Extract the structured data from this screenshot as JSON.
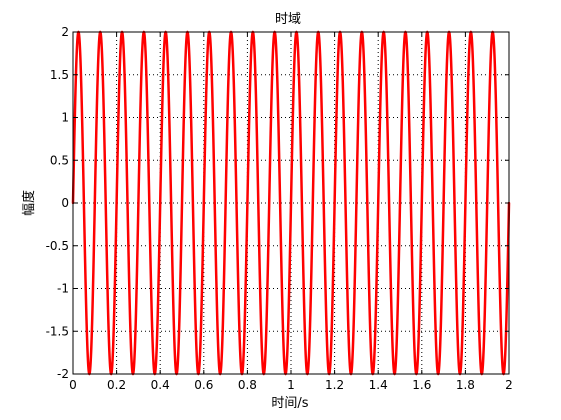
{
  "chart_data": {
    "type": "line",
    "title": "时域",
    "xlabel": "时间/s",
    "ylabel": "幅度",
    "xlim": [
      0,
      2
    ],
    "ylim": [
      -2,
      2
    ],
    "x_ticks": [
      0,
      0.2,
      0.4,
      0.6,
      0.8,
      1,
      1.2,
      1.4,
      1.6,
      1.8,
      2
    ],
    "x_tick_labels": [
      "0",
      "0.2",
      "0.4",
      "0.6",
      "0.8",
      "1",
      "1.2",
      "1.4",
      "1.6",
      "1.8",
      "2"
    ],
    "y_ticks": [
      2,
      1.5,
      1,
      0.5,
      0,
      -0.5,
      -1,
      -1.5,
      -2
    ],
    "y_tick_labels": [
      "2",
      "1.5",
      "1",
      "0.5",
      "0",
      "-0.5",
      "-1",
      "-1.5",
      "-2"
    ],
    "grid": true,
    "series": [
      {
        "color": "#ff0000",
        "function": "sine",
        "amplitude": 2,
        "frequency_hz": 10,
        "x_start": 0,
        "x_end": 2
      }
    ]
  }
}
